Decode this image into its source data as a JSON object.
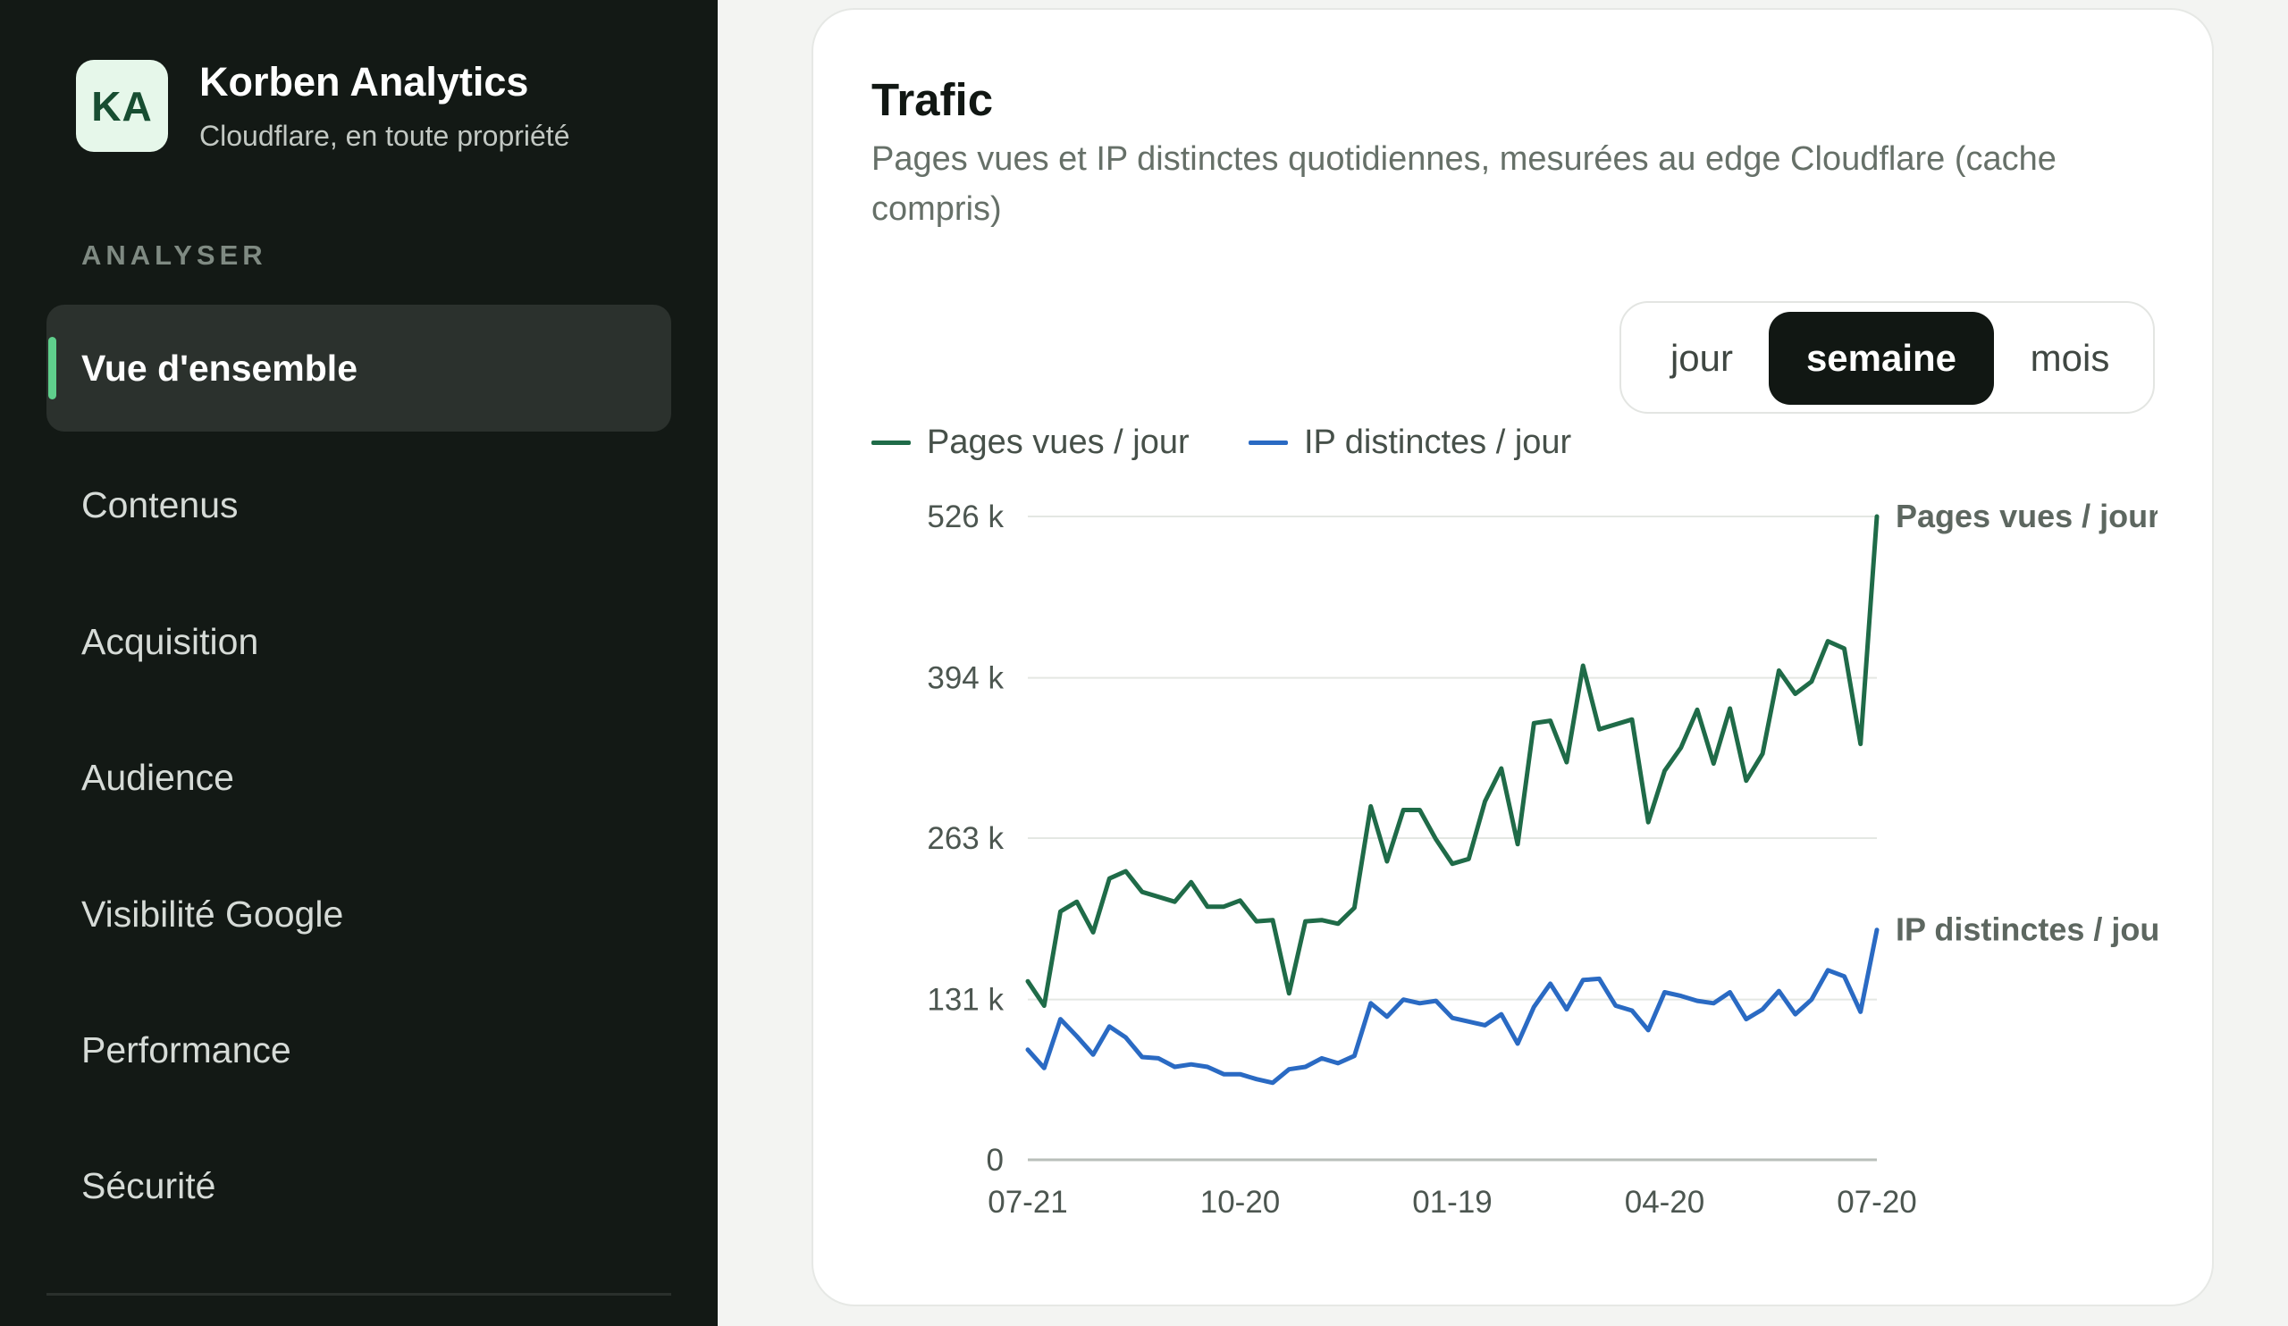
{
  "brand": {
    "logo_text": "KA",
    "name": "Korben Analytics",
    "subtitle": "Cloudflare, en toute propriété"
  },
  "sidebar": {
    "section_label": "ANALYSER",
    "items": [
      {
        "label": "Vue d'ensemble",
        "active": true
      },
      {
        "label": "Contenus"
      },
      {
        "label": "Acquisition"
      },
      {
        "label": "Audience"
      },
      {
        "label": "Visibilité Google"
      },
      {
        "label": "Performance"
      },
      {
        "label": "Sécurité"
      }
    ]
  },
  "card": {
    "title": "Trafic",
    "subtitle": "Pages vues et IP distinctes quotidiennes, mesurées au edge Cloudflare (cache compris)",
    "period_tabs": [
      {
        "label": "jour"
      },
      {
        "label": "semaine",
        "active": true
      },
      {
        "label": "mois"
      }
    ],
    "legend": [
      {
        "label": "Pages vues / jour",
        "color": "#1f6b48"
      },
      {
        "label": "IP distinctes / jour",
        "color": "#2a6ac3"
      }
    ]
  },
  "chart_data": {
    "type": "line",
    "y_ticks": [
      "526 k",
      "394 k",
      "263 k",
      "131 k",
      "0"
    ],
    "y_tick_values": [
      526000,
      394000,
      263000,
      131000,
      0
    ],
    "ylim": [
      0,
      526000
    ],
    "x_ticks": [
      {
        "label": "07-21",
        "index": 0
      },
      {
        "label": "10-20",
        "index": 13
      },
      {
        "label": "01-19",
        "index": 26
      },
      {
        "label": "04-20",
        "index": 39
      },
      {
        "label": "07-20",
        "index": 52
      }
    ],
    "grid": true,
    "series": [
      {
        "name": "Pages vues / jour",
        "end_label": "Pages vues / jour",
        "color": "#1f6b48",
        "values": [
          146000,
          126000,
          203000,
          211000,
          186000,
          230000,
          236000,
          219000,
          215000,
          211000,
          227000,
          207000,
          207000,
          212000,
          195000,
          196000,
          136000,
          195000,
          196000,
          193000,
          206000,
          289000,
          244000,
          286000,
          286000,
          262000,
          242000,
          246000,
          293000,
          320000,
          258000,
          357000,
          359000,
          325000,
          404000,
          352000,
          356000,
          360000,
          276000,
          318000,
          337000,
          368000,
          324000,
          369000,
          310000,
          332000,
          400000,
          381000,
          391000,
          424000,
          418000,
          340000,
          526000
        ]
      },
      {
        "name": "IP distinctes / jour",
        "end_label": "IP distinctes / jour",
        "color": "#2a6ac3",
        "values": [
          90000,
          75000,
          115000,
          101000,
          86000,
          109000,
          100000,
          84000,
          83000,
          76000,
          78000,
          76000,
          70000,
          70000,
          66000,
          63000,
          74000,
          76000,
          83000,
          79000,
          85000,
          128000,
          117000,
          131000,
          128000,
          130000,
          116000,
          113000,
          110000,
          119000,
          95000,
          125000,
          144000,
          123000,
          147000,
          148000,
          126000,
          122000,
          106000,
          137000,
          134000,
          130000,
          128000,
          137000,
          115000,
          123000,
          138000,
          119000,
          131000,
          155000,
          150000,
          121000,
          188000
        ]
      }
    ]
  }
}
